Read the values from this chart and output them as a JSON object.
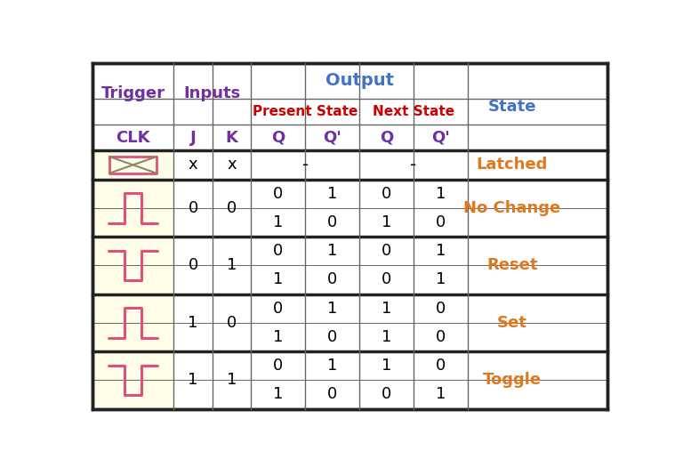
{
  "bg_color": "#ffffff",
  "cell_bg_yellow": "#fffde8",
  "border_color_outer": "#222222",
  "border_color_inner": "#666666",
  "header_blue": "#4472c4",
  "header_red": "#cc0000",
  "header_purple": "#7030a0",
  "state_orange": "#e07820",
  "clk_icon_color": "#e0507a",
  "clk_icon_x_color": "#888868",
  "states": [
    "Latched",
    "No Change",
    "Reset",
    "Set",
    "Toggle"
  ],
  "jk_values": [
    [
      "x",
      "x"
    ],
    [
      "0",
      "0"
    ],
    [
      "0",
      "1"
    ],
    [
      "1",
      "0"
    ],
    [
      "1",
      "1"
    ]
  ],
  "sub_data": [
    [
      [
        "0",
        "1",
        "0",
        "1"
      ],
      [
        "1",
        "0",
        "1",
        "0"
      ]
    ],
    [
      [
        "0",
        "1",
        "0",
        "1"
      ],
      [
        "1",
        "0",
        "0",
        "1"
      ]
    ],
    [
      [
        "0",
        "1",
        "1",
        "0"
      ],
      [
        "1",
        "0",
        "1",
        "0"
      ]
    ],
    [
      [
        "0",
        "1",
        "1",
        "0"
      ],
      [
        "1",
        "0",
        "0",
        "1"
      ]
    ]
  ],
  "clk_styles": [
    "crossed",
    "rising",
    "falling",
    "rising",
    "falling"
  ]
}
